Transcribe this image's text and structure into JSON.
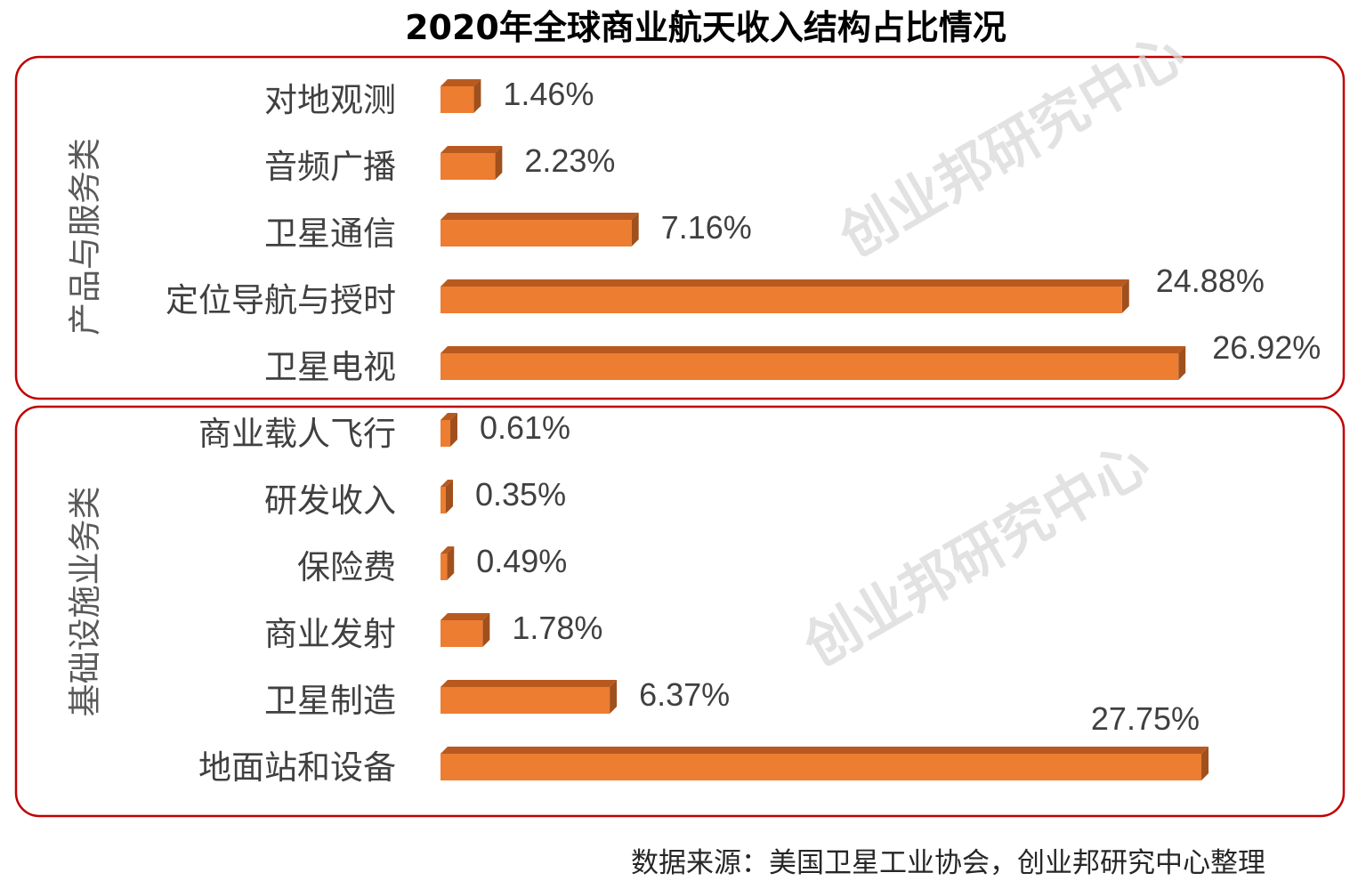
{
  "chart_data": {
    "type": "bar",
    "orientation": "horizontal",
    "title": "2020年全球商业航天收入结构占比情况",
    "unit": "%",
    "groups": [
      {
        "name": "产品与服务类",
        "categories": [
          "对地观测",
          "音频广播",
          "卫星通信",
          "定位导航与授时",
          "卫星电视"
        ],
        "values": [
          1.46,
          2.23,
          7.16,
          24.88,
          26.92
        ],
        "labels": [
          "1.46%",
          "2.23%",
          "7.16%",
          "24.88%",
          "26.92%"
        ]
      },
      {
        "name": "基础设施业务类",
        "categories": [
          "商业载人飞行",
          "研发收入",
          "保险费",
          "商业发射",
          "卫星制造",
          "地面站和设备"
        ],
        "values": [
          0.61,
          0.35,
          0.49,
          1.78,
          6.37,
          27.75
        ],
        "labels": [
          "0.61%",
          "0.35%",
          "0.49%",
          "1.78%",
          "6.37%",
          "27.75%"
        ]
      }
    ],
    "bar_color": "#ED7D31",
    "group_border_color": "#C00000",
    "xlim": [
      0,
      28
    ],
    "grid": false
  },
  "source": "数据来源：美国卫星工业协会，创业邦研究中心整理",
  "watermark": "创业邦研究中心"
}
